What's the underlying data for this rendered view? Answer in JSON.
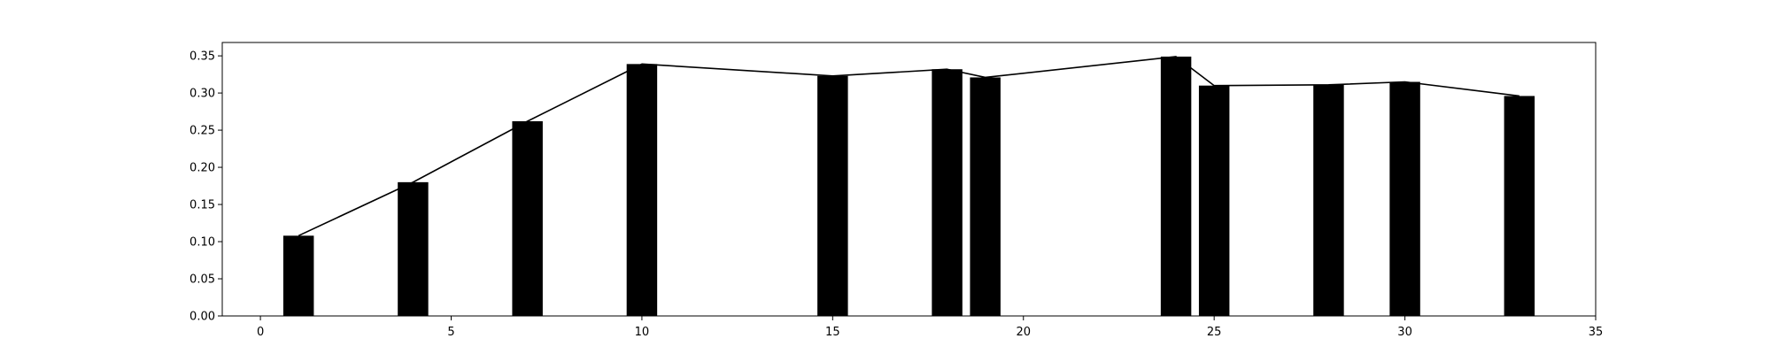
{
  "chart_data": {
    "type": "bar",
    "title": "",
    "xlabel": "",
    "ylabel": "",
    "xlim": [
      -1,
      35
    ],
    "ylim": [
      0,
      0.368
    ],
    "grid": false,
    "bar_width": 0.8,
    "bar_color": "#000000",
    "line_color": "#000000",
    "x": [
      1,
      4,
      7,
      10,
      15,
      18,
      19,
      24,
      25,
      28,
      30,
      33
    ],
    "values": [
      0.108,
      0.18,
      0.262,
      0.339,
      0.323,
      0.332,
      0.321,
      0.349,
      0.31,
      0.311,
      0.315,
      0.296
    ],
    "line": {
      "x": [
        1,
        4,
        7,
        10,
        15,
        18,
        19,
        24,
        25,
        28,
        30,
        33
      ],
      "y": [
        0.108,
        0.18,
        0.262,
        0.339,
        0.323,
        0.332,
        0.321,
        0.349,
        0.31,
        0.311,
        0.315,
        0.296
      ]
    },
    "x_ticks": [
      0,
      5,
      10,
      15,
      20,
      25,
      30,
      35
    ],
    "x_tick_labels": [
      "0",
      "5",
      "10",
      "15",
      "20",
      "25",
      "30",
      "35"
    ],
    "y_ticks": [
      0.0,
      0.05,
      0.1,
      0.15,
      0.2,
      0.25,
      0.3,
      0.35
    ],
    "y_tick_labels": [
      "0.00",
      "0.05",
      "0.10",
      "0.15",
      "0.20",
      "0.25",
      "0.30",
      "0.35"
    ]
  }
}
